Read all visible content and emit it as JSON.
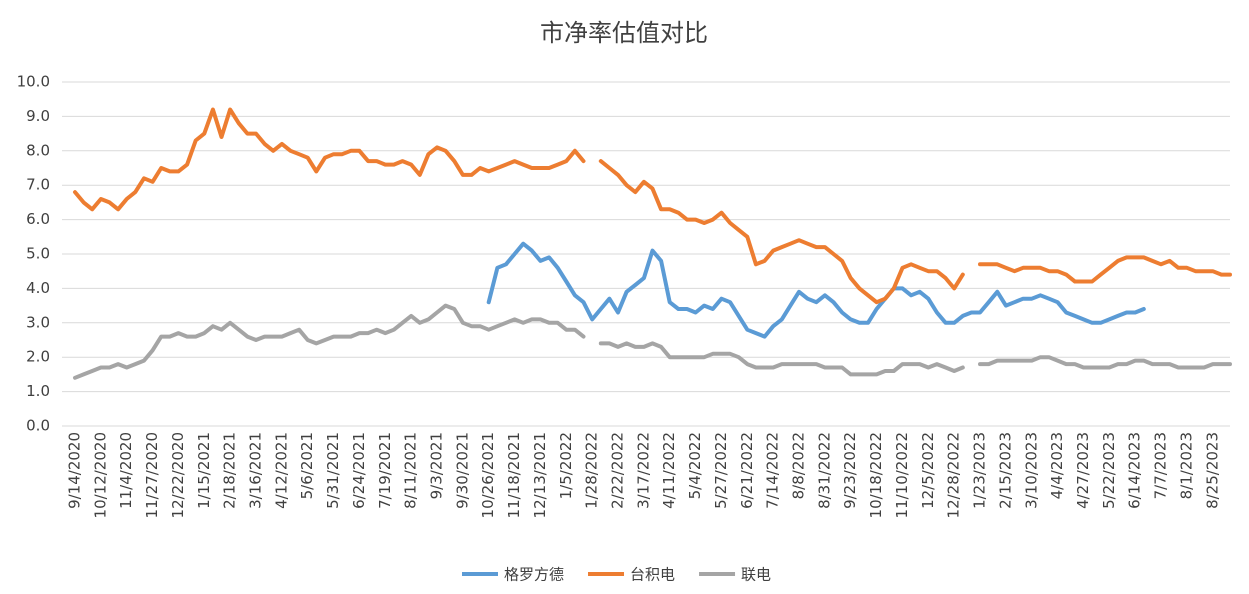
{
  "chart_data": {
    "type": "line",
    "title": "市净率估值对比",
    "categories": [
      "9/14/2020",
      null,
      null,
      "10/12/2020",
      null,
      null,
      "11/4/2020",
      null,
      null,
      "11/27/2020",
      null,
      null,
      "12/22/2020",
      null,
      null,
      "1/15/2021",
      null,
      null,
      "2/18/2021",
      null,
      null,
      "3/16/2021",
      null,
      null,
      "4/12/2021",
      null,
      null,
      "5/6/2021",
      null,
      null,
      "5/31/2021",
      null,
      null,
      "6/24/2021",
      null,
      null,
      "7/19/2021",
      null,
      null,
      "8/11/2021",
      null,
      null,
      "9/3/2021",
      null,
      null,
      "9/30/2021",
      null,
      null,
      "10/26/2021",
      null,
      null,
      "11/18/2021",
      null,
      null,
      "12/13/2021",
      null,
      null,
      "1/5/2022",
      null,
      null,
      "1/28/2022",
      null,
      null,
      "2/22/2022",
      null,
      null,
      "3/17/2022",
      null,
      null,
      "4/11/2022",
      null,
      null,
      "5/4/2022",
      null,
      null,
      "5/27/2022",
      null,
      null,
      "6/21/2022",
      null,
      null,
      "7/14/2022",
      null,
      null,
      "8/8/2022",
      null,
      null,
      "8/31/2022",
      null,
      null,
      "9/23/2022",
      null,
      null,
      "10/18/2022",
      null,
      null,
      "11/10/2022",
      null,
      null,
      "12/5/2022",
      null,
      null,
      "12/28/2022",
      null,
      null,
      "1/23/2023",
      null,
      null,
      "2/15/2023",
      null,
      null,
      "3/10/2023",
      null,
      null,
      "4/4/2023",
      null,
      null,
      "4/27/2023",
      null,
      null,
      "5/22/2023",
      null,
      null,
      "6/14/2023",
      null,
      null,
      "7/7/2023",
      null,
      null,
      "8/1/2023",
      null,
      null,
      "8/25/2023",
      null,
      null
    ],
    "series": [
      {
        "name": "格罗方德",
        "color": "#5b9bd5",
        "values": [
          null,
          null,
          null,
          null,
          null,
          null,
          null,
          null,
          null,
          null,
          null,
          null,
          null,
          null,
          null,
          null,
          null,
          null,
          null,
          null,
          null,
          null,
          null,
          null,
          null,
          null,
          null,
          null,
          null,
          null,
          null,
          null,
          null,
          null,
          null,
          null,
          null,
          null,
          null,
          null,
          null,
          null,
          null,
          null,
          null,
          null,
          null,
          null,
          3.6,
          4.6,
          4.7,
          5.0,
          5.3,
          5.1,
          4.8,
          4.9,
          4.6,
          4.2,
          3.8,
          3.6,
          3.1,
          3.4,
          3.7,
          3.3,
          3.9,
          4.1,
          4.3,
          5.1,
          4.8,
          3.6,
          3.4,
          3.4,
          3.3,
          3.5,
          3.4,
          3.7,
          3.6,
          3.2,
          2.8,
          2.7,
          2.6,
          2.9,
          3.1,
          3.5,
          3.9,
          3.7,
          3.6,
          3.8,
          3.6,
          3.3,
          3.1,
          3.0,
          3.0,
          3.4,
          3.7,
          4.0,
          4.0,
          3.8,
          3.9,
          3.7,
          3.3,
          3.0,
          3.0,
          3.2,
          3.3,
          3.3,
          3.6,
          3.9,
          3.5,
          3.6,
          3.7,
          3.7,
          3.8,
          3.7,
          3.6,
          3.3,
          3.2,
          3.1,
          3.0,
          3.0,
          3.1,
          3.2,
          3.3,
          3.3,
          3.4,
          null,
          null,
          null,
          null,
          null,
          null,
          null,
          null,
          null,
          null
        ]
      },
      {
        "name": "台积电",
        "color": "#ed7d31",
        "values": [
          6.8,
          6.5,
          6.3,
          6.6,
          6.5,
          6.3,
          6.6,
          6.8,
          7.2,
          7.1,
          7.5,
          7.4,
          7.4,
          7.6,
          8.3,
          8.5,
          9.2,
          8.4,
          9.2,
          8.8,
          8.5,
          8.5,
          8.2,
          8.0,
          8.2,
          8.0,
          7.9,
          7.8,
          7.4,
          7.8,
          7.9,
          7.9,
          8.0,
          8.0,
          7.7,
          7.7,
          7.6,
          7.6,
          7.7,
          7.6,
          7.3,
          7.9,
          8.1,
          8.0,
          7.7,
          7.3,
          7.3,
          7.5,
          7.4,
          7.5,
          7.6,
          7.7,
          7.6,
          7.5,
          7.5,
          7.5,
          7.6,
          7.7,
          8.0,
          7.7,
          null,
          7.7,
          7.5,
          7.3,
          7.0,
          6.8,
          7.1,
          6.9,
          6.3,
          6.3,
          6.2,
          6.0,
          6.0,
          5.9,
          6.0,
          6.2,
          5.9,
          5.7,
          5.5,
          4.7,
          4.8,
          5.1,
          5.2,
          5.3,
          5.4,
          5.3,
          5.2,
          5.2,
          5.0,
          4.8,
          4.3,
          4.0,
          3.8,
          3.6,
          3.7,
          4.0,
          4.6,
          4.7,
          4.6,
          4.5,
          4.5,
          4.3,
          4.0,
          4.4,
          null,
          4.7,
          4.7,
          4.7,
          4.6,
          4.5,
          4.6,
          4.6,
          4.6,
          4.5,
          4.5,
          4.4,
          4.2,
          4.2,
          4.2,
          4.4,
          4.6,
          4.8,
          4.9,
          4.9,
          4.9,
          4.8,
          4.7,
          4.8,
          4.6,
          4.6,
          4.5,
          4.5,
          4.5,
          4.4,
          4.4
        ]
      },
      {
        "name": "联电",
        "color": "#a5a5a5",
        "values": [
          1.4,
          1.5,
          1.6,
          1.7,
          1.7,
          1.8,
          1.7,
          1.8,
          1.9,
          2.2,
          2.6,
          2.6,
          2.7,
          2.6,
          2.6,
          2.7,
          2.9,
          2.8,
          3.0,
          2.8,
          2.6,
          2.5,
          2.6,
          2.6,
          2.6,
          2.7,
          2.8,
          2.5,
          2.4,
          2.5,
          2.6,
          2.6,
          2.6,
          2.7,
          2.7,
          2.8,
          2.7,
          2.8,
          3.0,
          3.2,
          3.0,
          3.1,
          3.3,
          3.5,
          3.4,
          3.0,
          2.9,
          2.9,
          2.8,
          2.9,
          3.0,
          3.1,
          3.0,
          3.1,
          3.1,
          3.0,
          3.0,
          2.8,
          2.8,
          2.6,
          null,
          2.4,
          2.4,
          2.3,
          2.4,
          2.3,
          2.3,
          2.4,
          2.3,
          2.0,
          2.0,
          2.0,
          2.0,
          2.0,
          2.1,
          2.1,
          2.1,
          2.0,
          1.8,
          1.7,
          1.7,
          1.7,
          1.8,
          1.8,
          1.8,
          1.8,
          1.8,
          1.7,
          1.7,
          1.7,
          1.5,
          1.5,
          1.5,
          1.5,
          1.6,
          1.6,
          1.8,
          1.8,
          1.8,
          1.7,
          1.8,
          1.7,
          1.6,
          1.7,
          null,
          1.8,
          1.8,
          1.9,
          1.9,
          1.9,
          1.9,
          1.9,
          2.0,
          2.0,
          1.9,
          1.8,
          1.8,
          1.7,
          1.7,
          1.7,
          1.7,
          1.8,
          1.8,
          1.9,
          1.9,
          1.8,
          1.8,
          1.8,
          1.7,
          1.7,
          1.7,
          1.7,
          1.8,
          1.8,
          1.8
        ]
      }
    ],
    "ylim": [
      0,
      10
    ],
    "yticks": [
      {
        "value": 0,
        "label": "0.0"
      },
      {
        "value": 1,
        "label": "1.0"
      },
      {
        "value": 2,
        "label": "2.0"
      },
      {
        "value": 3,
        "label": "3.0"
      },
      {
        "value": 4,
        "label": "4.0"
      },
      {
        "value": 5,
        "label": "5.0"
      },
      {
        "value": 6,
        "label": "6.0"
      },
      {
        "value": 7,
        "label": "7.0"
      },
      {
        "value": 8,
        "label": "8.0"
      },
      {
        "value": 9,
        "label": "9.0"
      },
      {
        "value": 10,
        "label": "10.0"
      }
    ],
    "grid": true,
    "legend": "bottom"
  }
}
